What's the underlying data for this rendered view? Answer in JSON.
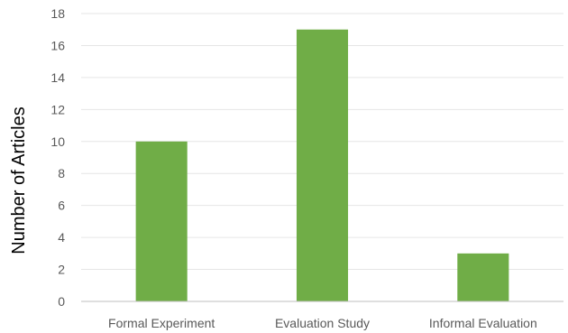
{
  "chart_data": {
    "type": "bar",
    "title": "",
    "xlabel": "",
    "ylabel": "Number of Articles",
    "categories": [
      "Formal Experiment",
      "Evaluation Study",
      "Informal Evaluation"
    ],
    "values": [
      10,
      17,
      3
    ],
    "ylim": [
      0,
      18
    ],
    "ytick_step": 2,
    "grid": true,
    "legend": "none",
    "bar_color": "#70ad47",
    "grid_color": "#e6e6e6",
    "axis_color": "#bfbfbf"
  }
}
